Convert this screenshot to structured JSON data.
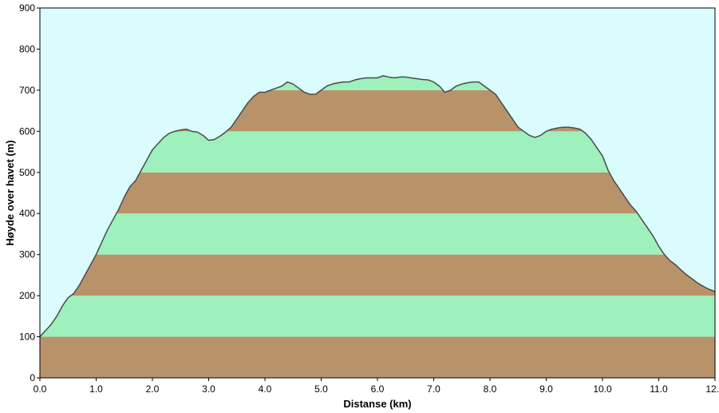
{
  "chart_data": {
    "type": "area",
    "title": "",
    "xlabel": "Distanse   (km)",
    "ylabel": "Høyde over havet  (m)",
    "xlim": [
      0,
      12
    ],
    "ylim": [
      0,
      900
    ],
    "x_ticks": [
      "0.0",
      "1.0",
      "2.0",
      "3.0",
      "4.0",
      "5.0",
      "6.0",
      "7.0",
      "8.0",
      "9.0",
      "10.0",
      "11.0",
      "12.0"
    ],
    "y_ticks": [
      "0",
      "100",
      "200",
      "300",
      "400",
      "500",
      "600",
      "700",
      "800",
      "900"
    ],
    "grid": false,
    "legend": "none",
    "colors": {
      "sky": "#DAFCFC",
      "band_brown": "#B8936A",
      "band_green": "#9EF0BC",
      "profile_line": "#4A4A4A",
      "axis": "#000000"
    },
    "band_height_m": 100,
    "series": [
      {
        "x": [
          0.0,
          0.1,
          0.2,
          0.3,
          0.4,
          0.5,
          0.6,
          0.7,
          0.8,
          0.9,
          1.0,
          1.1,
          1.2,
          1.3,
          1.4,
          1.5,
          1.6,
          1.7,
          1.8,
          1.9,
          2.0,
          2.1,
          2.2,
          2.3,
          2.4,
          2.5,
          2.6,
          2.7,
          2.8,
          2.9,
          3.0,
          3.1,
          3.2,
          3.3,
          3.4,
          3.5,
          3.6,
          3.7,
          3.8,
          3.9,
          4.0,
          4.1,
          4.2,
          4.3,
          4.4,
          4.5,
          4.6,
          4.7,
          4.8,
          4.9,
          5.0,
          5.1,
          5.2,
          5.3,
          5.4,
          5.5,
          5.6,
          5.7,
          5.8,
          5.9,
          6.0,
          6.1,
          6.2,
          6.3,
          6.4,
          6.5,
          6.6,
          6.7,
          6.8,
          6.9,
          7.0,
          7.1,
          7.2,
          7.3,
          7.4,
          7.5,
          7.6,
          7.7,
          7.8,
          7.9,
          8.0,
          8.1,
          8.2,
          8.3,
          8.4,
          8.5,
          8.6,
          8.7,
          8.8,
          8.9,
          9.0,
          9.1,
          9.2,
          9.3,
          9.4,
          9.5,
          9.6,
          9.7,
          9.8,
          9.9,
          10.0,
          10.1,
          10.2,
          10.3,
          10.4,
          10.5,
          10.6,
          10.7,
          10.8,
          10.9,
          11.0,
          11.1,
          11.2,
          11.3,
          11.4,
          11.5,
          11.6,
          11.7,
          11.8,
          11.9,
          12.0
        ],
        "y": [
          100,
          115,
          130,
          150,
          175,
          195,
          205,
          225,
          250,
          275,
          300,
          330,
          360,
          385,
          410,
          440,
          465,
          480,
          505,
          530,
          555,
          570,
          585,
          595,
          600,
          603,
          605,
          600,
          598,
          590,
          578,
          580,
          588,
          598,
          610,
          630,
          650,
          670,
          685,
          695,
          695,
          700,
          705,
          710,
          720,
          715,
          705,
          695,
          690,
          690,
          700,
          710,
          715,
          718,
          720,
          720,
          725,
          728,
          730,
          730,
          730,
          735,
          732,
          730,
          732,
          732,
          730,
          728,
          726,
          725,
          720,
          710,
          695,
          700,
          710,
          715,
          718,
          720,
          720,
          710,
          700,
          690,
          670,
          650,
          630,
          610,
          600,
          590,
          585,
          590,
          600,
          605,
          608,
          610,
          610,
          608,
          605,
          595,
          580,
          560,
          540,
          505,
          480,
          460,
          440,
          420,
          405,
          385,
          365,
          345,
          320,
          300,
          285,
          275,
          262,
          250,
          240,
          230,
          222,
          215,
          210
        ]
      }
    ]
  }
}
